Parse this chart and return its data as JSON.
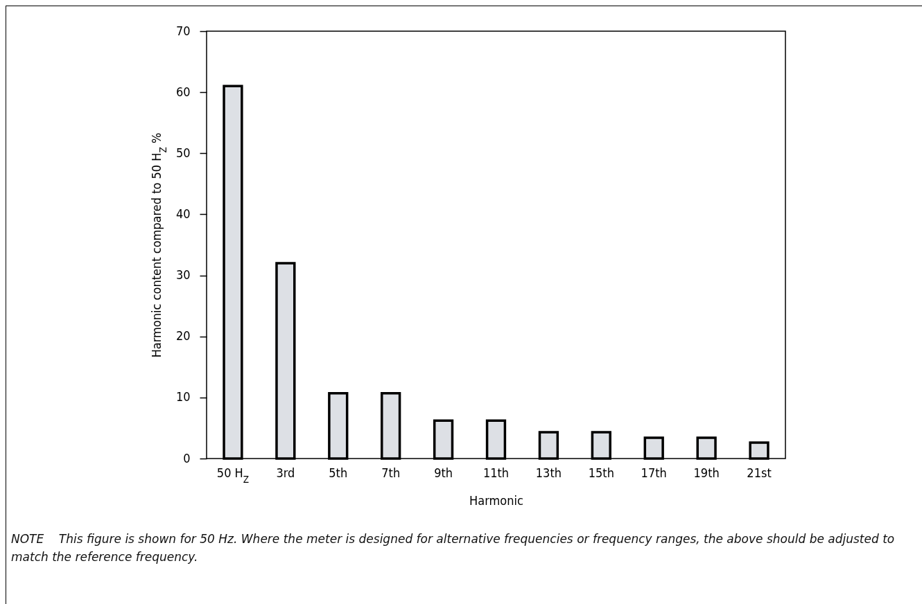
{
  "chart_data": {
    "type": "bar",
    "categories": [
      "50 H$_{Z}$",
      "3rd",
      "5th",
      "7th",
      "9th",
      "11th",
      "13th",
      "15th",
      "17th",
      "19th",
      "21st"
    ],
    "values": [
      61,
      32,
      10.7,
      10.7,
      6.2,
      6.2,
      4.3,
      4.3,
      3.4,
      3.4,
      2.6
    ],
    "color": "#dde0e5",
    "xlabel": "Harmonic",
    "ylabel": "Harmonic content compared to 50 H$_{Z}$ %",
    "ylim": [
      0,
      70
    ],
    "yticks": [
      0,
      10,
      20,
      30,
      40,
      50,
      60,
      70
    ],
    "grid": false,
    "annotations": [
      "NOTE    This figure is shown for 50 Hz. Where the meter is designed for alternative frequencies or frequency ranges, the above should be adjusted to match the reference frequency."
    ]
  }
}
